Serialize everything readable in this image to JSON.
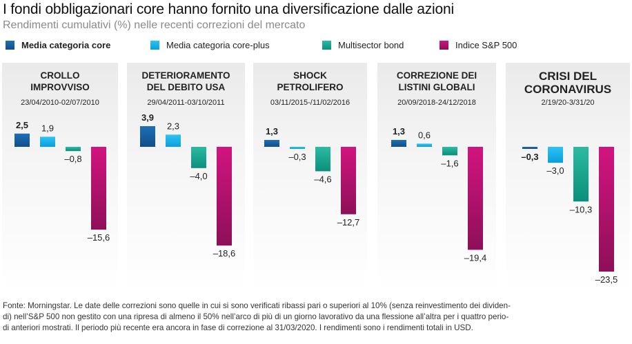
{
  "header": {
    "title": "I fondi obbligazionari core hanno fornito una diversificazione dalle azioni",
    "subtitle": "Rendimenti cumulativi (%) nelle recenti correzioni del mercato"
  },
  "legend": [
    {
      "label": "Media categoria core",
      "color": "#1f6fb5",
      "bold": true
    },
    {
      "label": "Media categoria core-plus",
      "color": "#15b0ea",
      "bold": false
    },
    {
      "label": "Multisector bond",
      "color": "#17a890",
      "bold": false
    },
    {
      "label": "Indice S&P 500",
      "color": "#b81270",
      "bold": false
    }
  ],
  "colors": {
    "core": [
      "#1f6fb5",
      "#0f4f8a"
    ],
    "plus": [
      "#2ec3f3",
      "#0a9fdb"
    ],
    "multi": [
      "#2cbba2",
      "#0a8f7c"
    ],
    "sp": [
      "#d2147f",
      "#8e0f58"
    ]
  },
  "chart_data": {
    "type": "bar",
    "title": "I fondi obbligazionari core hanno fornito una diversificazione dalle azioni",
    "ylabel": "Rendimenti cumulativi (%)",
    "series_names": [
      "Media categoria core",
      "Media categoria core-plus",
      "Multisector bond",
      "Indice S&P 500"
    ],
    "panels": [
      {
        "title_lines": [
          "CROLLO",
          "IMPROVVISO"
        ],
        "dates": "23/04/2010-02/07/2010",
        "values": [
          2.5,
          1.9,
          -0.8,
          -15.6
        ],
        "labels": [
          "2,5",
          "1,9",
          "–0,8",
          "–15,6"
        ]
      },
      {
        "title_lines": [
          "DETERIORAMENTO",
          "DEL DEBITO USA"
        ],
        "dates": "29/04/2011-03/10/2011",
        "values": [
          3.9,
          2.3,
          -4.0,
          -18.6
        ],
        "labels": [
          "3,9",
          "2,3",
          "–4,0",
          "–18,6"
        ]
      },
      {
        "title_lines": [
          "SHOCK",
          "PETROLIFERO"
        ],
        "dates": "03/11/2015-/11/02/2016",
        "values": [
          1.3,
          -0.3,
          -4.6,
          -12.7
        ],
        "labels": [
          "1,3",
          "–0,3",
          "–4,6",
          "–12,7"
        ]
      },
      {
        "title_lines": [
          "CORREZIONE DEI",
          "LISTINI GLOBALI"
        ],
        "dates": "20/09/2018-24/12/2018",
        "values": [
          1.3,
          0.6,
          -1.6,
          -19.4
        ],
        "labels": [
          "1,3",
          "0,6",
          "–1,6",
          "–19,4"
        ]
      },
      {
        "title_lines": [
          "CRISI DEL",
          "CORONAVIRUS"
        ],
        "dates": "2/19/20-3/31/20",
        "values": [
          -0.3,
          -3.0,
          -10.3,
          -23.5
        ],
        "labels": [
          "–0,3",
          "–3,0",
          "–10,3",
          "–23,5"
        ]
      }
    ]
  },
  "footnote": {
    "line1": "Fonte: Morningstar. Le date delle correzioni sono quelle in cui si sono verificati ribassi pari o superiori al 10% (senza reinvestimento dei dividen-",
    "line2": "di) nell’S&P 500 non gestito con una ripresa di almeno il 50% nell’arco di più di un giorno lavorativo da una flessione all’altra per i quattro perio-",
    "line3": "di anteriori mostrati. Il periodo più recente era ancora in fase di correzione al 31/03/2020. I rendimenti sono i rendimenti totali in USD."
  }
}
